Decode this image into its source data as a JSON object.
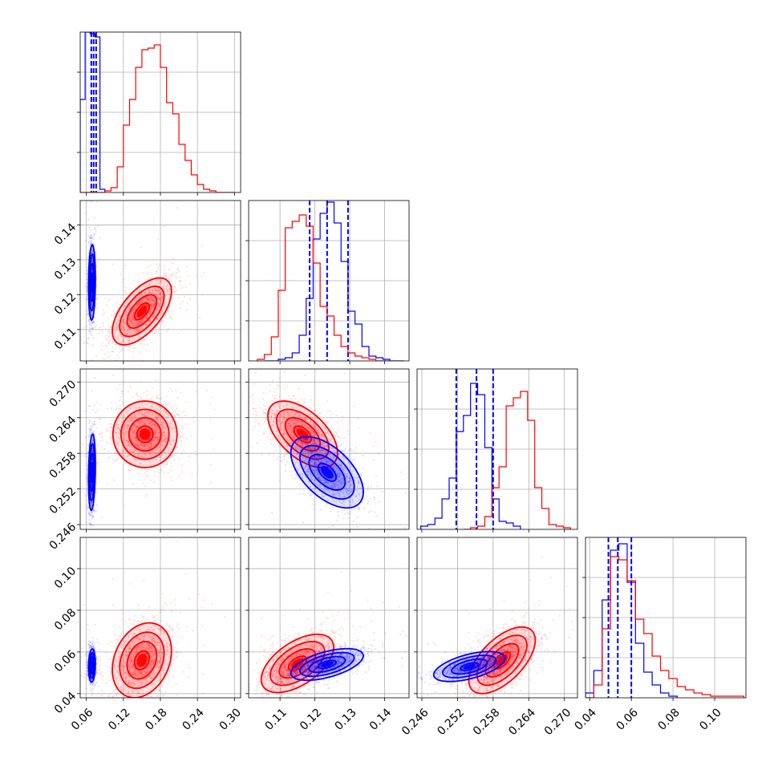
{
  "colors": {
    "blue": "#0000ff",
    "red": "#ff0000",
    "grid": "#b0b0b0",
    "axis": "#000000",
    "background": "#ffffff"
  },
  "chart_data": {
    "type": "corner",
    "title": "",
    "parameters": [
      {
        "label": "",
        "ticks": [
          "0.06",
          "0.12",
          "0.18",
          "0.24",
          "0.30"
        ],
        "range": [
          0.05,
          0.31
        ]
      },
      {
        "label": "",
        "ticks": [
          "0.11",
          "0.12",
          "0.13",
          "0.14"
        ],
        "range": [
          0.101,
          0.147
        ]
      },
      {
        "label": "",
        "ticks": [
          "0.246",
          "0.252",
          "0.258",
          "0.264",
          "0.270"
        ],
        "range": [
          0.2452,
          0.2722
        ]
      },
      {
        "label": "",
        "ticks": [
          "0.04",
          "0.06",
          "0.08",
          "0.10"
        ],
        "range": [
          0.038,
          0.115
        ]
      }
    ],
    "grid": true,
    "series": [
      {
        "color": "blue",
        "means": [
          0.072,
          0.1235,
          0.2548,
          0.0535
        ],
        "sds": [
          0.0025,
          0.0052,
          0.0032,
          0.0042
        ],
        "correlations": [
          [
            1,
            0.15,
            0.15,
            0.0
          ],
          [
            0.15,
            1,
            -0.55,
            0.6
          ],
          [
            0.15,
            -0.55,
            1,
            0.55
          ],
          [
            0.0,
            0.6,
            0.55,
            1
          ]
        ],
        "quantile_lines": [
          [
            0.068,
            0.0718,
            0.0758
          ],
          [
            0.1185,
            0.1235,
            0.1295
          ],
          [
            0.2518,
            0.2552,
            0.258
          ],
          [
            0.049,
            0.0535,
            0.06
          ]
        ],
        "histograms": [
          {
            "bin_edges": [
              0.05,
              0.058,
              0.066,
              0.074,
              0.082,
              0.09
            ],
            "counts": [
              0.58,
              1.0,
              0.99,
              0.97,
              0.02
            ]
          },
          {
            "bin_edges": [
              0.1055,
              0.1075,
              0.1095,
              0.1115,
              0.1135,
              0.1155,
              0.1175,
              0.1195,
              0.1215,
              0.1235,
              0.1255,
              0.1275,
              0.1295,
              0.1315,
              0.1335,
              0.1355,
              0.1375,
              0.1395,
              0.1415,
              0.1435,
              0.1455
            ],
            "counts": [
              0,
              0,
              0.01,
              0.02,
              0.05,
              0.16,
              0.39,
              0.76,
              0.92,
              0.99,
              0.86,
              0.62,
              0.31,
              0.23,
              0.09,
              0.03,
              0.02,
              0.01,
              0,
              0
            ]
          },
          {
            "bin_edges": [
              0.2458,
              0.247,
              0.2482,
              0.2494,
              0.2506,
              0.2518,
              0.253,
              0.2542,
              0.2554,
              0.2566,
              0.2578,
              0.259,
              0.2602,
              0.2614,
              0.2626
            ],
            "counts": [
              0.02,
              0.03,
              0.07,
              0.19,
              0.32,
              0.61,
              0.71,
              0.91,
              0.84,
              0.51,
              0.19,
              0.05,
              0.04,
              0.02
            ]
          },
          {
            "bin_edges": [
              0.038,
              0.042,
              0.046,
              0.05,
              0.054,
              0.058,
              0.062,
              0.066,
              0.07,
              0.074,
              0.078,
              0.082
            ],
            "counts": [
              0.03,
              0.17,
              0.61,
              0.92,
              0.96,
              0.72,
              0.34,
              0.16,
              0.08,
              0.03,
              0.01
            ]
          }
        ]
      },
      {
        "color": "red",
        "means": [
          0.15,
          0.116,
          0.2612,
          0.056
        ],
        "sds": [
          0.026,
          0.0052,
          0.003,
          0.01
        ],
        "correlations": [
          [
            1,
            0.5,
            0.0,
            0.2
          ],
          [
            0.5,
            1,
            -0.5,
            0.45
          ],
          [
            0.0,
            -0.5,
            1,
            0.5
          ],
          [
            0.2,
            0.45,
            0.5,
            1
          ]
        ],
        "quantile_lines": [],
        "histograms": [
          {
            "bin_edges": [
              0.05,
              0.06,
              0.07,
              0.08,
              0.09,
              0.1,
              0.11,
              0.12,
              0.13,
              0.14,
              0.15,
              0.16,
              0.17,
              0.18,
              0.19,
              0.2,
              0.21,
              0.22,
              0.23,
              0.24,
              0.25,
              0.26,
              0.27,
              0.28,
              0.29,
              0.3
            ],
            "counts": [
              0,
              0,
              0,
              0,
              0.01,
              0.03,
              0.16,
              0.42,
              0.58,
              0.78,
              0.89,
              0.9,
              0.92,
              0.78,
              0.56,
              0.49,
              0.3,
              0.2,
              0.11,
              0.05,
              0.02,
              0.01,
              0,
              0,
              0
            ]
          },
          {
            "bin_edges": [
              0.1035,
              0.1055,
              0.1075,
              0.1095,
              0.1115,
              0.1135,
              0.1155,
              0.1175,
              0.1195,
              0.1215,
              0.1235,
              0.1255,
              0.1275,
              0.1295,
              0.1315,
              0.1335,
              0.1355,
              0.1375,
              0.1395,
              0.1415
            ],
            "counts": [
              0.01,
              0.04,
              0.15,
              0.44,
              0.83,
              0.87,
              0.91,
              0.84,
              0.61,
              0.34,
              0.28,
              0.16,
              0.09,
              0.05,
              0.03,
              0.02,
              0.01,
              0,
              0
            ]
          },
          {
            "bin_edges": [
              0.253,
              0.2542,
              0.2554,
              0.2566,
              0.2578,
              0.259,
              0.2602,
              0.2614,
              0.2626,
              0.2638,
              0.265,
              0.2662,
              0.2674,
              0.2686,
              0.2698,
              0.271
            ],
            "counts": [
              0,
              0.01,
              0.02,
              0.08,
              0.26,
              0.39,
              0.77,
              0.82,
              0.86,
              0.68,
              0.26,
              0.13,
              0.03,
              0.02,
              0.01
            ]
          },
          {
            "bin_edges": [
              0.038,
              0.042,
              0.046,
              0.05,
              0.054,
              0.058,
              0.062,
              0.066,
              0.07,
              0.074,
              0.078,
              0.082,
              0.086,
              0.09,
              0.094,
              0.098,
              0.102,
              0.106,
              0.11,
              0.114
            ],
            "counts": [
              0,
              0.08,
              0.43,
              0.88,
              0.86,
              0.73,
              0.49,
              0.4,
              0.26,
              0.17,
              0.12,
              0.07,
              0.05,
              0.03,
              0.02,
              0.01,
              0.01,
              0.01,
              0.01
            ]
          }
        ]
      }
    ],
    "pairs": [
      {
        "row": 1,
        "col": 0,
        "means": {
          "blue": [
            0.069,
            0.1235
          ],
          "red": [
            0.15,
            0.1152
          ]
        },
        "sds": {
          "blue": [
            0.0028,
            0.0054
          ],
          "red": [
            0.024,
            0.0048
          ]
        },
        "rho": {
          "blue": 0.1,
          "red": 0.6
        }
      },
      {
        "row": 2,
        "col": 0,
        "means": {
          "blue": [
            0.069,
            0.2548
          ],
          "red": [
            0.155,
            0.2612
          ]
        },
        "sds": {
          "blue": [
            0.0028,
            0.0032
          ],
          "red": [
            0.026,
            0.0028
          ]
        },
        "rho": {
          "blue": 0.2,
          "red": 0.0
        }
      },
      {
        "row": 2,
        "col": 1,
        "means": {
          "blue": [
            0.1235,
            0.2548
          ],
          "red": [
            0.1165,
            0.2612
          ]
        },
        "sds": {
          "blue": [
            0.0052,
            0.003
          ],
          "red": [
            0.005,
            0.0028
          ]
        },
        "rho": {
          "blue": -0.55,
          "red": -0.55
        }
      },
      {
        "row": 3,
        "col": 0,
        "means": {
          "blue": [
            0.069,
            0.0535
          ],
          "red": [
            0.15,
            0.056
          ]
        },
        "sds": {
          "blue": [
            0.0028,
            0.004
          ],
          "red": [
            0.024,
            0.009
          ]
        },
        "rho": {
          "blue": 0.1,
          "red": 0.25
        }
      },
      {
        "row": 3,
        "col": 1,
        "means": {
          "blue": [
            0.1235,
            0.054
          ],
          "red": [
            0.115,
            0.0545
          ]
        },
        "sds": {
          "blue": [
            0.0052,
            0.0038
          ],
          "red": [
            0.0052,
            0.007
          ]
        },
        "rho": {
          "blue": 0.55,
          "red": 0.55
        }
      },
      {
        "row": 3,
        "col": 2,
        "means": {
          "blue": [
            0.254,
            0.053
          ],
          "red": [
            0.2595,
            0.056
          ]
        },
        "sds": {
          "blue": [
            0.003,
            0.0036
          ],
          "red": [
            0.0028,
            0.008
          ]
        },
        "rho": {
          "blue": 0.55,
          "red": 0.6
        }
      }
    ]
  }
}
